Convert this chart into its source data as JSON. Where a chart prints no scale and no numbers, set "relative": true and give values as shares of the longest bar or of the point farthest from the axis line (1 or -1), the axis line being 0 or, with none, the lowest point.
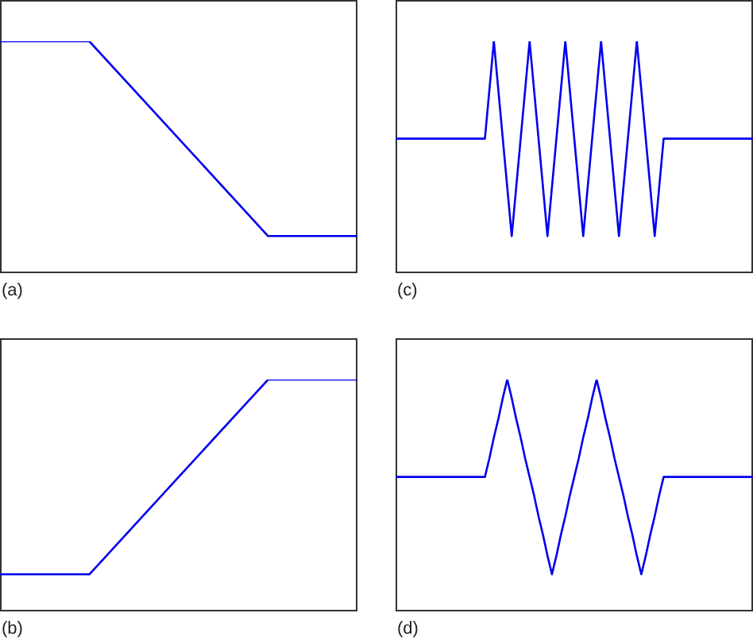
{
  "chart_data": [
    {
      "type": "line",
      "relative": true,
      "marker": "none",
      "annotations": [
        "(a)"
      ],
      "categories": [
        null,
        null,
        null,
        null,
        null
      ],
      "series": [
        {
          "color": "#0000ee",
          "values": [
            1,
            1,
            0.58,
            0.16,
            0.16
          ]
        }
      ]
    },
    {
      "type": "line",
      "relative": true,
      "marker": "none",
      "annotations": [
        "(c)"
      ],
      "categories": [
        null,
        null,
        null,
        null,
        null,
        null,
        null,
        null,
        null,
        null,
        null,
        null,
        null,
        null,
        null,
        null,
        null,
        null,
        null,
        null,
        null,
        null,
        null,
        null,
        null,
        null,
        null,
        null,
        null,
        null,
        null,
        null,
        null,
        null,
        null,
        null,
        null,
        null,
        null,
        null,
        null
      ],
      "series": [
        {
          "color": "#0000ee",
          "values": [
            0.58,
            0.58,
            0.58,
            0.58,
            0.58,
            0.58,
            0.58,
            0.58,
            0.58,
            0.58,
            0.58,
            1,
            0.58,
            0.16,
            0.58,
            1,
            0.58,
            0.16,
            0.58,
            1,
            0.58,
            0.16,
            0.58,
            1,
            0.58,
            0.16,
            0.58,
            1,
            0.58,
            0.16,
            0.58,
            0.58,
            0.58,
            0.58,
            0.58,
            0.58,
            0.58,
            0.58,
            0.58,
            0.58,
            0.58
          ]
        }
      ]
    },
    {
      "type": "line",
      "relative": true,
      "marker": "none",
      "annotations": [
        "(b)"
      ],
      "categories": [
        null,
        null,
        null,
        null,
        null
      ],
      "series": [
        {
          "color": "#0000ee",
          "values": [
            0.16,
            0.16,
            0.58,
            1,
            1
          ]
        }
      ]
    },
    {
      "type": "line",
      "relative": true,
      "marker": "none",
      "annotations": [
        "(d)"
      ],
      "categories": [
        null,
        null,
        null,
        null,
        null,
        null,
        null,
        null,
        null,
        null,
        null,
        null,
        null,
        null,
        null,
        null,
        null,
        null,
        null,
        null,
        null,
        null,
        null,
        null,
        null,
        null,
        null,
        null,
        null,
        null,
        null,
        null,
        null,
        null,
        null,
        null,
        null,
        null,
        null,
        null,
        null,
        null,
        null,
        null,
        null,
        null,
        null,
        null,
        null,
        null,
        null,
        null,
        null,
        null,
        null,
        null,
        null,
        null,
        null,
        null,
        null,
        null,
        null,
        null,
        null,
        null,
        null,
        null,
        null,
        null,
        null,
        null,
        null,
        null,
        null,
        null,
        null,
        null,
        null,
        null,
        null
      ],
      "series": [
        {
          "color": "#0000ee",
          "values": [
            0.58,
            0.58,
            0.58,
            0.58,
            0.58,
            0.58,
            0.58,
            0.58,
            0.58,
            0.58,
            0.58,
            0.58,
            0.58,
            0.58,
            0.58,
            0.58,
            0.58,
            0.58,
            0.58,
            0.58,
            0.58,
            0.66,
            0.75,
            0.83,
            0.92,
            1,
            0.92,
            0.83,
            0.75,
            0.66,
            0.58,
            0.5,
            0.41,
            0.33,
            0.24,
            0.16,
            0.24,
            0.33,
            0.41,
            0.5,
            0.58,
            0.66,
            0.75,
            0.83,
            0.92,
            1,
            0.92,
            0.83,
            0.75,
            0.66,
            0.58,
            0.5,
            0.41,
            0.33,
            0.24,
            0.16,
            0.24,
            0.33,
            0.41,
            0.5,
            0.58,
            0.58,
            0.58,
            0.58,
            0.58,
            0.58,
            0.58,
            0.58,
            0.58,
            0.58,
            0.58,
            0.58,
            0.58,
            0.58,
            0.58,
            0.58,
            0.58,
            0.58,
            0.58,
            0.58,
            0.58
          ]
        }
      ]
    }
  ]
}
